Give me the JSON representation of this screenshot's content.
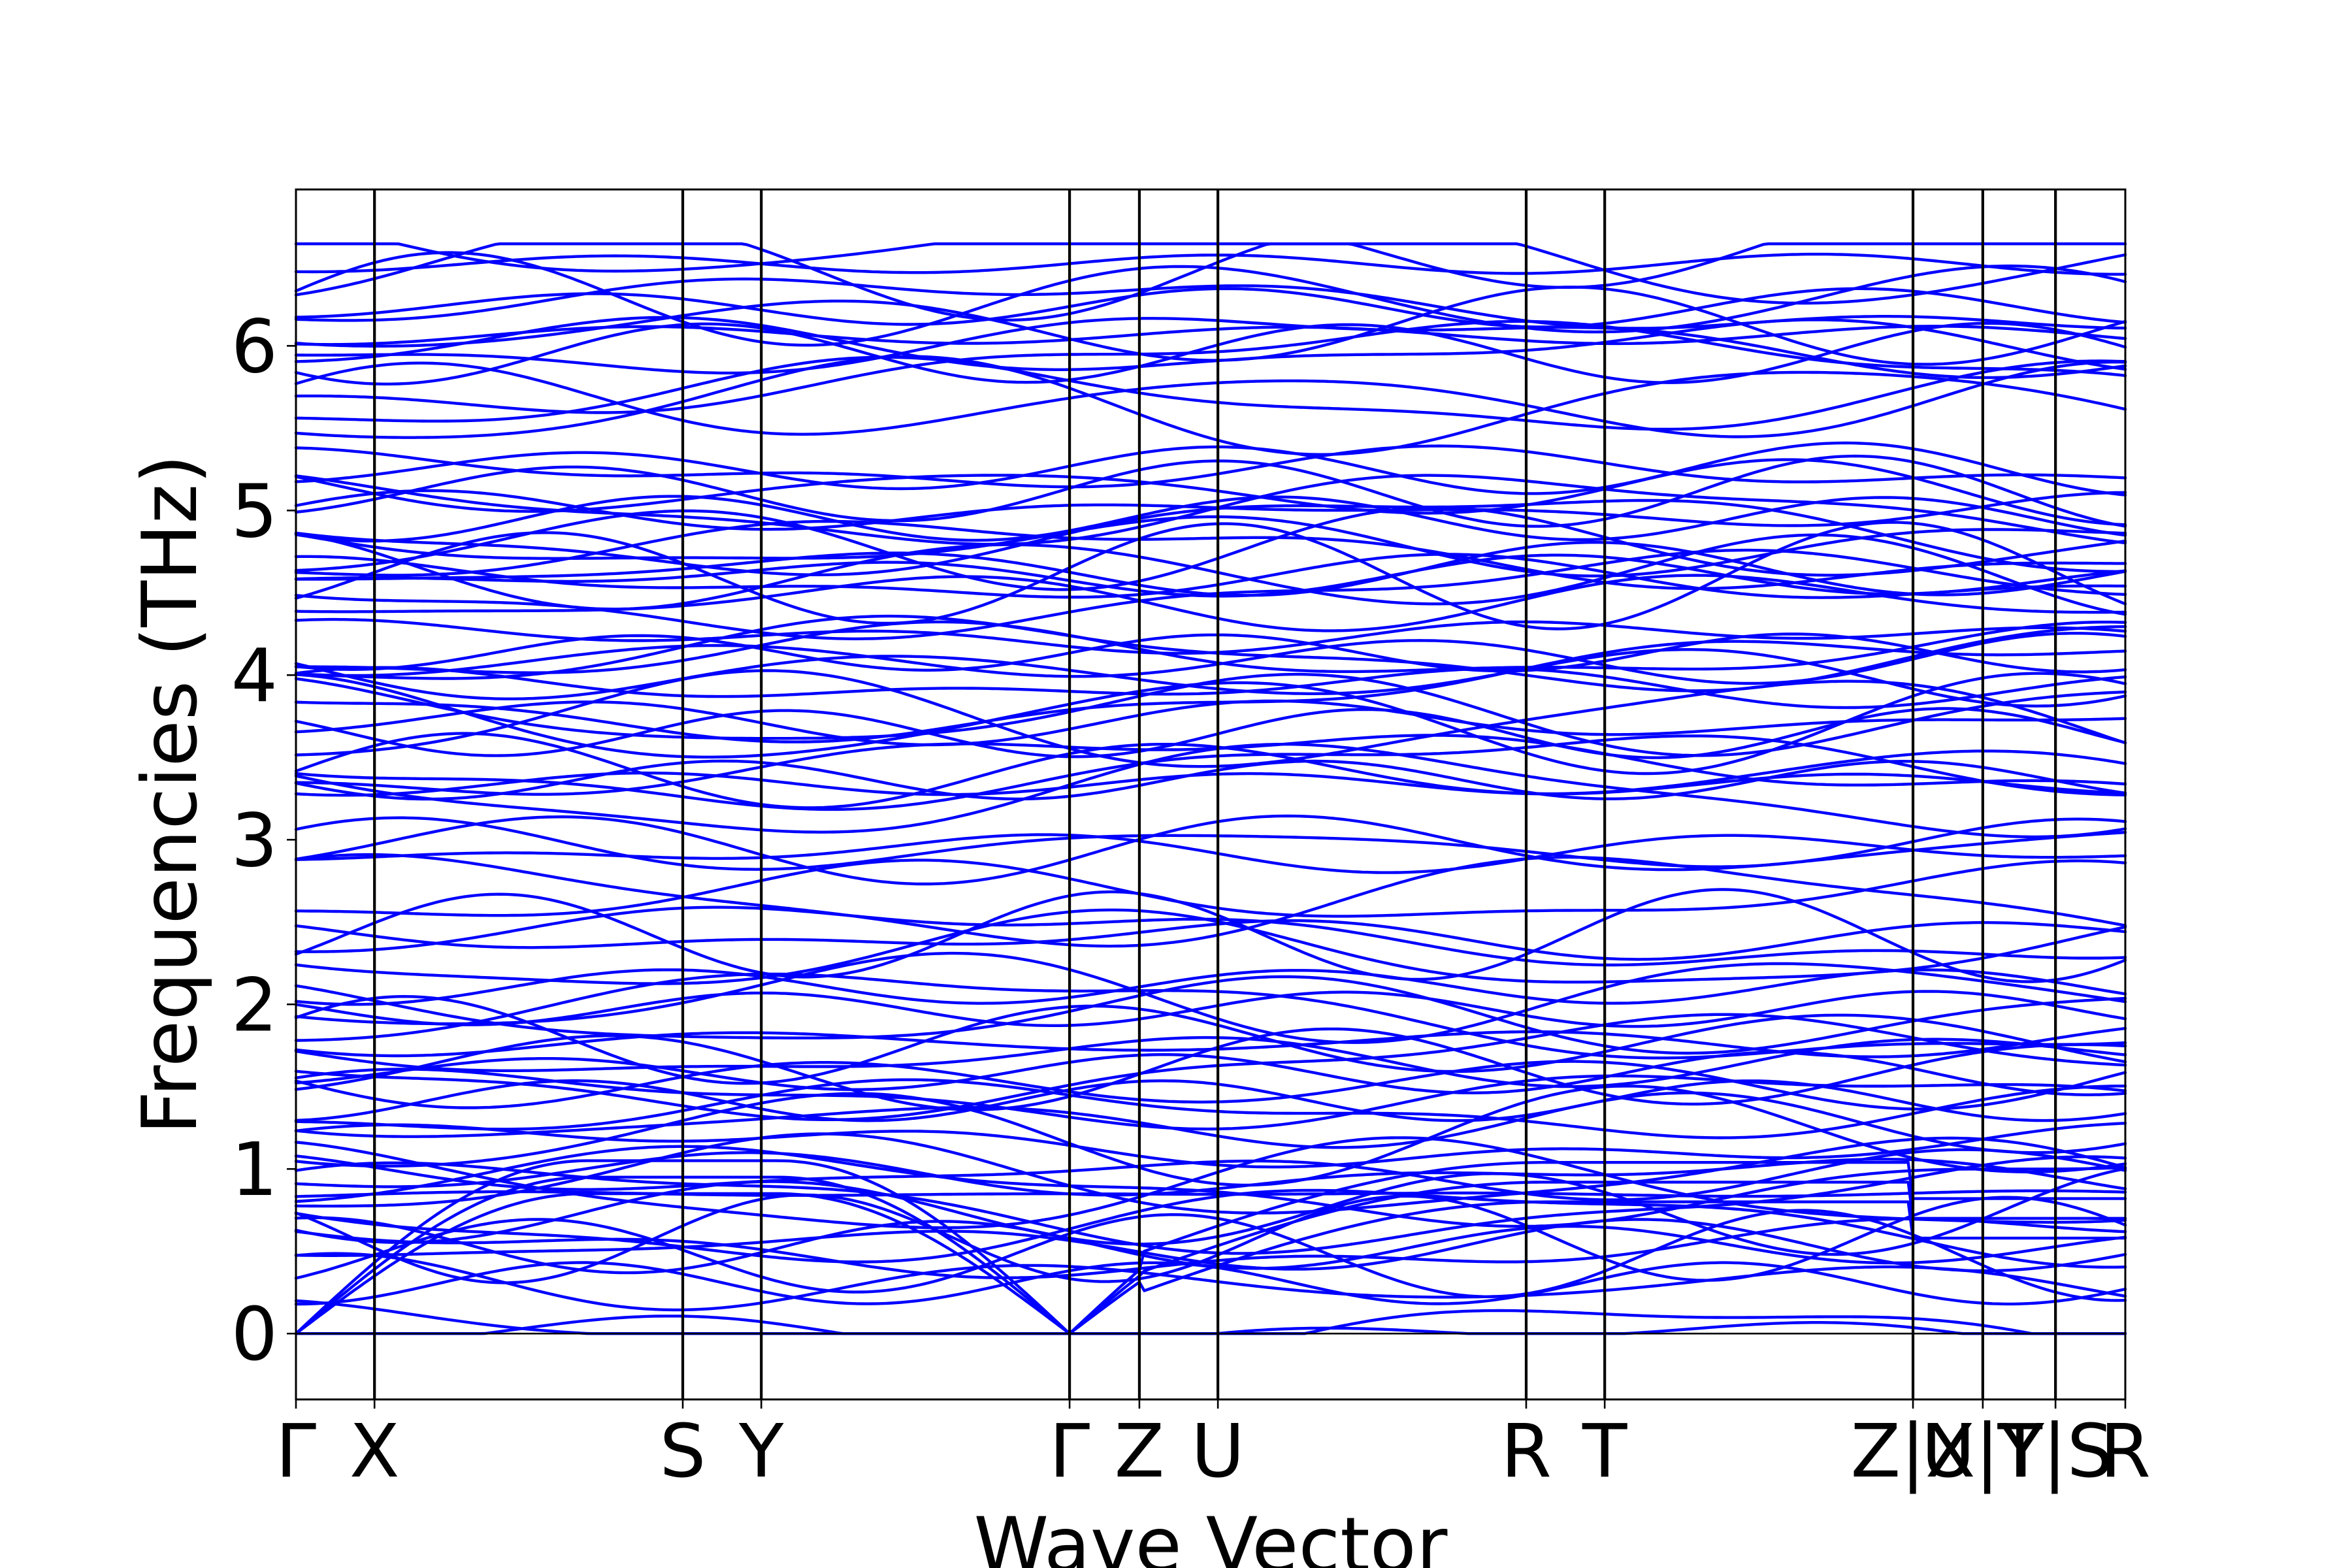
{
  "chart_data": {
    "type": "line",
    "title": "",
    "xlabel": "Wave Vector",
    "ylabel": "Frequencies (THz)",
    "ylim": [
      -0.4,
      6.95
    ],
    "yticks": [
      0,
      1,
      2,
      3,
      4,
      5,
      6
    ],
    "grid": false,
    "line_color": "#0000ff",
    "kpath_positions": [
      0.0,
      0.27,
      1.33,
      1.6,
      2.66,
      2.9,
      3.17,
      4.23,
      4.5,
      5.56,
      5.8,
      6.05,
      6.29
    ],
    "kpath_labels": [
      "Γ",
      "X",
      "S",
      "Y",
      "Γ",
      "Z",
      "U",
      "R",
      "T",
      "Z|X",
      "U|Y",
      "T|S",
      "R"
    ],
    "xlim": [
      0.0,
      6.29
    ],
    "band_count_shown": 100,
    "band_reference_frequencies_thz": [
      0.0,
      0.0,
      0.0,
      0.28,
      0.48,
      0.53,
      0.57,
      0.66,
      0.75,
      0.86,
      0.9,
      0.92,
      0.93,
      1.18,
      1.27,
      1.38,
      1.41,
      1.55,
      1.63,
      1.66,
      1.78,
      1.92,
      1.96,
      2.07,
      2.32,
      2.38,
      2.41,
      2.66,
      2.93,
      2.96,
      3.3,
      3.33,
      3.42,
      3.45,
      3.68,
      3.73,
      3.75,
      3.92,
      4.02,
      4.09,
      4.12,
      4.27,
      4.45,
      4.58,
      4.61,
      4.64,
      4.72,
      4.8,
      4.84,
      4.97,
      5.02,
      5.12,
      5.23,
      5.63,
      5.68,
      5.86,
      5.98,
      6.03,
      6.11,
      6.22,
      6.28,
      6.47,
      6.62
    ]
  }
}
